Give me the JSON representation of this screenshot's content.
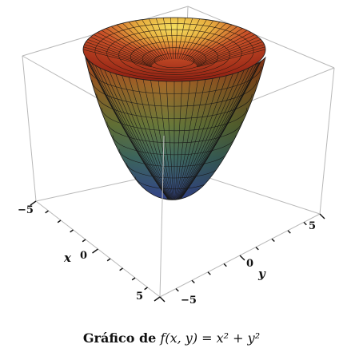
{
  "chart_data": {
    "type": "surface3d",
    "function": "f(x,y) = x^2 + y^2",
    "x_range": [
      -5,
      5
    ],
    "y_range": [
      -5,
      5
    ],
    "xlabel": "x",
    "ylabel": "y",
    "x_ticks": [
      "−5",
      "0",
      "5"
    ],
    "y_ticks": [
      "−5",
      "0",
      "5"
    ],
    "colormap": [
      "#3a4a8c",
      "#3f7a5a",
      "#8a8a3a",
      "#d8c84a",
      "#e86a2a",
      "#b82010"
    ],
    "mesh": true,
    "box": true
  },
  "caption": {
    "prefix": "Gráfico de",
    "formula": "f(x, y) = x² + y²"
  }
}
